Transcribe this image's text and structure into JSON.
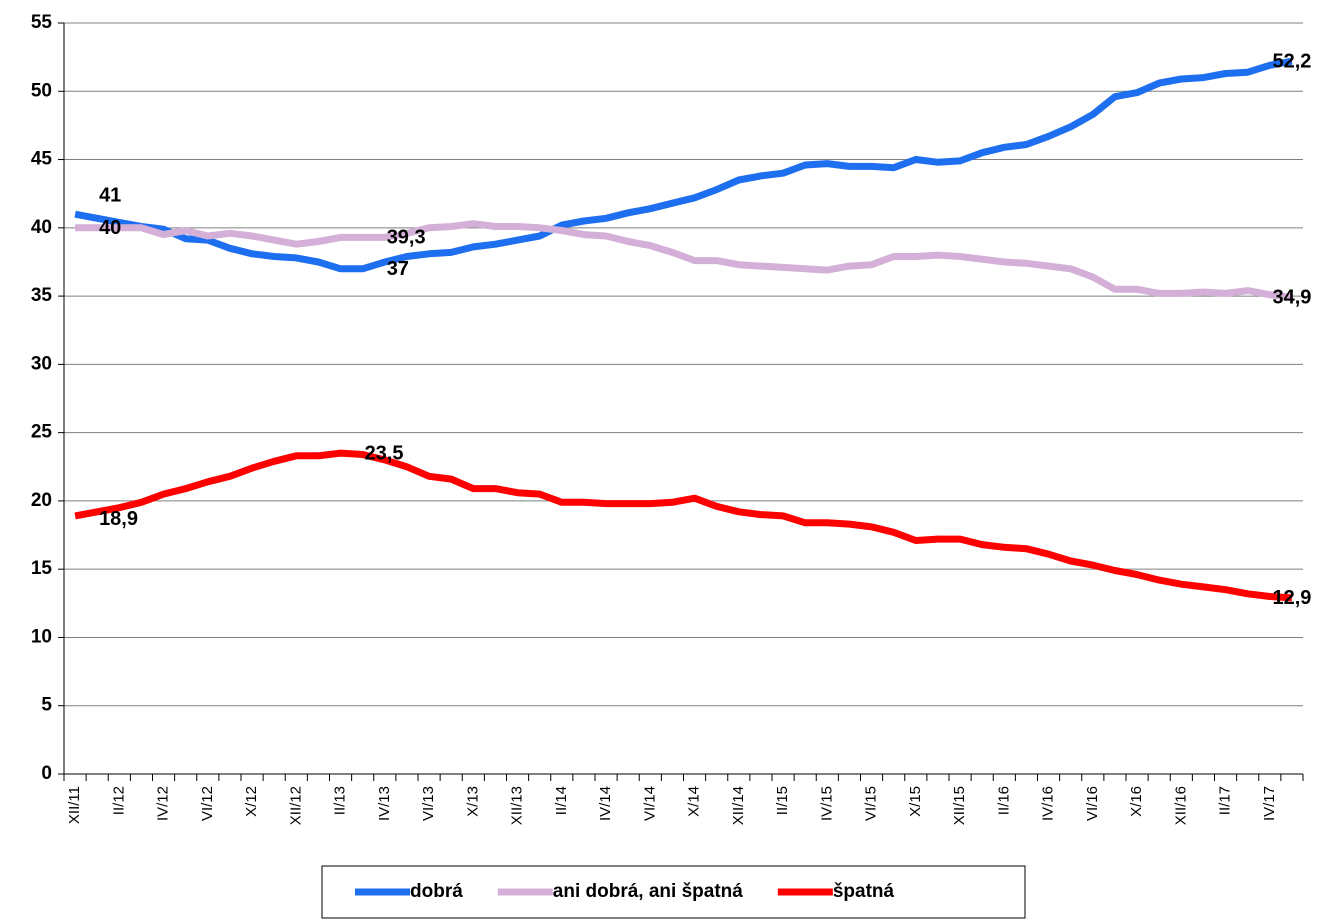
{
  "chart_data": {
    "type": "line",
    "categories": [
      "XII/11",
      null,
      "II/12",
      null,
      "IV/12",
      null,
      "VI/12",
      null,
      "X/12",
      null,
      "XII/12",
      null,
      "II/13",
      null,
      "IV/13",
      null,
      "VI/13",
      null,
      "X/13",
      null,
      "XII/13",
      null,
      "II/14",
      null,
      "IV/14",
      null,
      "VI/14",
      null,
      "X/14",
      null,
      "XII/14",
      null,
      "II/15",
      null,
      "IV/15",
      null,
      "VI/15",
      null,
      "X/15",
      null,
      "XII/15",
      null,
      "II/16",
      null,
      "IV/16",
      null,
      "VI/16",
      null,
      "X/16",
      null,
      "XII/16",
      null,
      "II/17",
      null,
      "IV/17",
      null
    ],
    "series": [
      {
        "name": "dobrá",
        "color": "#1e6ef0",
        "values": [
          41,
          40.7,
          40.4,
          40.1,
          39.9,
          39.2,
          39.1,
          38.5,
          38.1,
          37.9,
          37.8,
          37.5,
          37.0,
          37,
          37.5,
          37.9,
          38.1,
          38.2,
          38.6,
          38.8,
          39.1,
          39.4,
          40.2,
          40.5,
          40.7,
          41.1,
          41.4,
          41.8,
          42.2,
          42.8,
          43.5,
          43.8,
          44.0,
          44.6,
          44.7,
          44.5,
          44.5,
          44.4,
          45.0,
          44.8,
          44.9,
          45.5,
          45.9,
          46.1,
          46.7,
          47.4,
          48.3,
          49.6,
          49.9,
          50.6,
          50.9,
          51.0,
          51.3,
          51.4,
          51.9,
          52.2
        ],
        "value_labels": [
          "41",
          null,
          null,
          null,
          null,
          null,
          null,
          null,
          null,
          null,
          null,
          null,
          null,
          "37",
          null,
          null,
          null,
          null,
          null,
          null,
          null,
          null,
          null,
          null,
          null,
          null,
          null,
          null,
          null,
          null,
          null,
          null,
          null,
          null,
          null,
          null,
          null,
          null,
          null,
          null,
          null,
          null,
          null,
          null,
          null,
          null,
          null,
          null,
          null,
          null,
          null,
          null,
          null,
          null,
          null,
          "52,2"
        ]
      },
      {
        "name": "ani dobrá, ani špatná",
        "color": "#d4b0d8",
        "values": [
          40,
          40,
          40,
          40,
          39.5,
          39.8,
          39.4,
          39.6,
          39.4,
          39.1,
          38.8,
          39.0,
          39.3,
          39.3,
          39.3,
          39.6,
          40.0,
          40.1,
          40.3,
          40.1,
          40.1,
          40.0,
          39.8,
          39.5,
          39.4,
          39.0,
          38.7,
          38.2,
          37.6,
          37.6,
          37.3,
          37.2,
          37.1,
          37.0,
          36.9,
          37.2,
          37.3,
          37.9,
          37.9,
          38.0,
          37.9,
          37.7,
          37.5,
          37.4,
          37.2,
          37.0,
          36.4,
          35.5,
          35.5,
          35.2,
          35.2,
          35.3,
          35.2,
          35.4,
          35.1,
          34.9
        ],
        "value_labels": [
          "40",
          null,
          null,
          null,
          null,
          null,
          null,
          null,
          null,
          null,
          null,
          null,
          null,
          "39,3",
          null,
          null,
          null,
          null,
          null,
          null,
          null,
          null,
          null,
          null,
          null,
          null,
          null,
          null,
          null,
          null,
          null,
          null,
          null,
          null,
          null,
          null,
          null,
          null,
          null,
          null,
          null,
          null,
          null,
          null,
          null,
          null,
          null,
          null,
          null,
          null,
          null,
          null,
          null,
          null,
          null,
          "34,9"
        ]
      },
      {
        "name": "špatná",
        "color": "#ff0000",
        "values": [
          18.9,
          19.2,
          19.5,
          19.9,
          20.5,
          20.9,
          21.4,
          21.8,
          22.4,
          22.9,
          23.3,
          23.3,
          23.5,
          23.4,
          23.0,
          22.5,
          21.8,
          21.6,
          20.9,
          20.9,
          20.6,
          20.5,
          19.9,
          19.9,
          19.8,
          19.8,
          19.8,
          19.9,
          20.2,
          19.6,
          19.2,
          19.0,
          18.9,
          18.4,
          18.4,
          18.3,
          18.1,
          17.7,
          17.1,
          17.2,
          17.2,
          16.8,
          16.6,
          16.5,
          16.1,
          15.6,
          15.3,
          14.9,
          14.6,
          14.2,
          13.9,
          13.7,
          13.5,
          13.2,
          13.0,
          12.9
        ],
        "value_labels": [
          "18,9",
          null,
          null,
          null,
          null,
          null,
          null,
          null,
          null,
          null,
          null,
          null,
          "23,5",
          null,
          null,
          null,
          null,
          null,
          null,
          null,
          null,
          null,
          null,
          null,
          null,
          null,
          null,
          null,
          null,
          null,
          null,
          null,
          null,
          null,
          null,
          null,
          null,
          null,
          null,
          null,
          null,
          null,
          null,
          null,
          null,
          null,
          null,
          null,
          null,
          null,
          null,
          null,
          null,
          null,
          null,
          "12,9"
        ]
      }
    ],
    "ylim": [
      0,
      55
    ],
    "yticks": [
      0,
      5,
      10,
      15,
      20,
      25,
      30,
      35,
      40,
      45,
      50,
      55
    ],
    "grid": true,
    "legend": "bottom"
  }
}
